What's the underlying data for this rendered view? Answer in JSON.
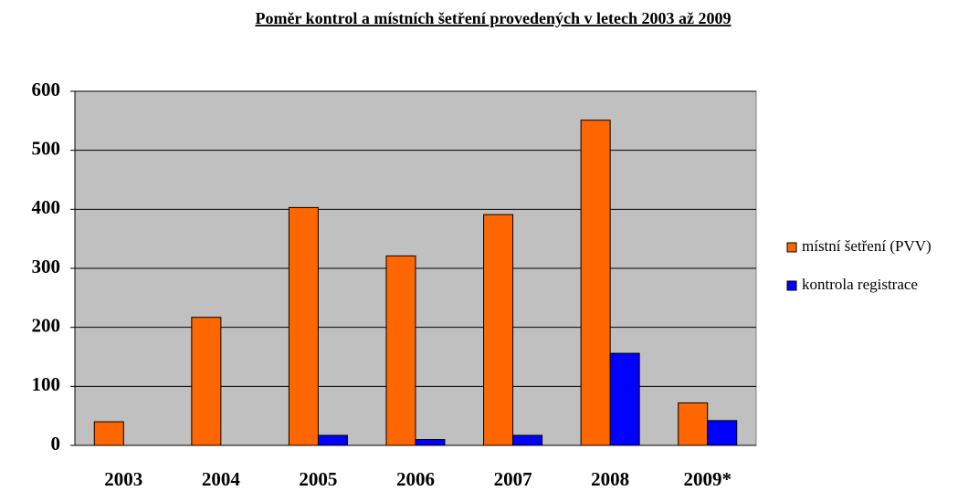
{
  "chart_data": {
    "type": "bar",
    "title": "Poměr kontrol a místních šetření provedených v letech 2003 až 2009",
    "categories": [
      "2003",
      "2004",
      "2005",
      "2006",
      "2007",
      "2008",
      "2009*"
    ],
    "series": [
      {
        "name": "místní šetření (PVV)",
        "color": "#ff6600",
        "values": [
          40,
          217,
          403,
          321,
          391,
          551,
          72
        ]
      },
      {
        "name": "kontrola registrace",
        "color": "#0000ff",
        "values": [
          0,
          0,
          17,
          10,
          17,
          156,
          42
        ]
      }
    ],
    "ylim": [
      0,
      600
    ],
    "yticks": [
      0,
      100,
      200,
      300,
      400,
      500,
      600
    ],
    "grid": true,
    "legend": "right"
  }
}
